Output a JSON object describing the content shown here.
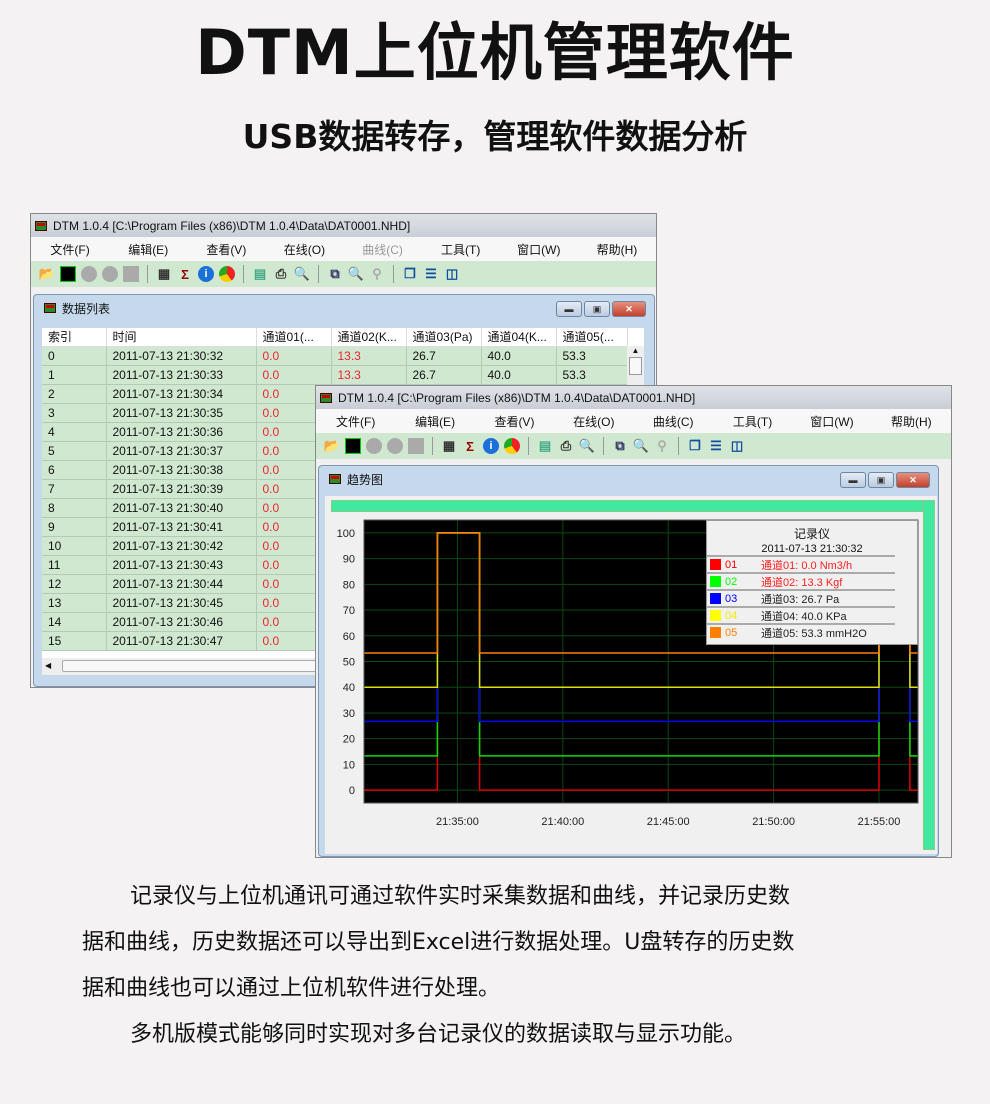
{
  "heading": {
    "title": "DTM上位机管理软件",
    "subtitle": "USB数据转存，管理软件数据分析"
  },
  "app": {
    "window_title": "DTM 1.0.4 [C:\\Program Files (x86)\\DTM 1.0.4\\Data\\DAT0001.NHD]",
    "menu": [
      "文件(F)",
      "编辑(E)",
      "查看(V)",
      "在线(O)",
      "曲线(C)",
      "工具(T)",
      "窗口(W)",
      "帮助(H)"
    ],
    "toolbar_icons": [
      "open-folder-icon",
      "trend-icon",
      "record-icon",
      "pause-icon",
      "stop-icon",
      "table-icon",
      "sigma-icon",
      "info-icon",
      "pie-icon",
      "export-icon",
      "print-icon",
      "print-preview-icon",
      "copy-icon",
      "zoom-in-icon",
      "zoom-out-icon",
      "cascade-icon",
      "tile-horizontal-icon",
      "tile-vertical-icon"
    ]
  },
  "data_list": {
    "title": "数据列表",
    "columns": [
      "索引",
      "时间",
      "通道01(...",
      "通道02(K...",
      "通道03(Pa)",
      "通道04(K...",
      "通道05(..."
    ],
    "rows": [
      [
        "0",
        "2011-07-13 21:30:32",
        "0.0",
        "13.3",
        "26.7",
        "40.0",
        "53.3"
      ],
      [
        "1",
        "2011-07-13 21:30:33",
        "0.0",
        "13.3",
        "26.7",
        "40.0",
        "53.3"
      ],
      [
        "2",
        "2011-07-13 21:30:34",
        "0.0"
      ],
      [
        "3",
        "2011-07-13 21:30:35",
        "0.0"
      ],
      [
        "4",
        "2011-07-13 21:30:36",
        "0.0"
      ],
      [
        "5",
        "2011-07-13 21:30:37",
        "0.0"
      ],
      [
        "6",
        "2011-07-13 21:30:38",
        "0.0"
      ],
      [
        "7",
        "2011-07-13 21:30:39",
        "0.0"
      ],
      [
        "8",
        "2011-07-13 21:30:40",
        "0.0"
      ],
      [
        "9",
        "2011-07-13 21:30:41",
        "0.0"
      ],
      [
        "10",
        "2011-07-13 21:30:42",
        "0.0"
      ],
      [
        "11",
        "2011-07-13 21:30:43",
        "0.0"
      ],
      [
        "12",
        "2011-07-13 21:30:44",
        "0.0"
      ],
      [
        "13",
        "2011-07-13 21:30:45",
        "0.0"
      ],
      [
        "14",
        "2011-07-13 21:30:46",
        "0.0"
      ],
      [
        "15",
        "2011-07-13 21:30:47",
        "0.0"
      ]
    ]
  },
  "trend": {
    "title": "趋势图",
    "legend": {
      "title": "记录仪",
      "timestamp": "2011-07-13 21:30:32",
      "items": [
        {
          "id": "01",
          "text": "通道01: 0.0 Nm3/h",
          "color": "#ff0000",
          "text_color": "#ff2020"
        },
        {
          "id": "02",
          "text": "通道02: 13.3 Kgf",
          "color": "#00ff00",
          "text_color": "#ff2020"
        },
        {
          "id": "03",
          "text": "通道03: 26.7 Pa",
          "color": "#0000ff",
          "text_color": "#222222"
        },
        {
          "id": "04",
          "text": "通道04: 40.0 KPa",
          "color": "#ffff00",
          "text_color": "#222222"
        },
        {
          "id": "05",
          "text": "通道05: 53.3 mmH2O",
          "color": "#ff8000",
          "text_color": "#222222"
        }
      ]
    }
  },
  "chart_data": {
    "type": "line",
    "x_range": [
      "21:30:34",
      "21:56:51"
    ],
    "ylim": [
      -5,
      105
    ],
    "y_ticks": [
      0,
      10,
      20,
      30,
      40,
      50,
      60,
      70,
      80,
      90,
      100
    ],
    "x_ticks": [
      "21:35:00",
      "21:40:00",
      "21:45:00",
      "21:50:00",
      "21:55:00"
    ],
    "grid": true,
    "legend_placement": "top-right",
    "pulses": [
      {
        "start": "21:34:03",
        "end": "21:36:03",
        "value": 100
      },
      {
        "start": "21:55:00",
        "end": "21:56:28",
        "value": 100
      }
    ],
    "series": [
      {
        "name": "01",
        "color": "#e00000",
        "baseline": 0.0
      },
      {
        "name": "02",
        "color": "#00e000",
        "baseline": 13.3
      },
      {
        "name": "03",
        "color": "#0000ee",
        "baseline": 26.7
      },
      {
        "name": "04",
        "color": "#e0e000",
        "baseline": 40.0
      },
      {
        "name": "05",
        "color": "#ff8000",
        "baseline": 53.3
      }
    ]
  },
  "description": {
    "p1": "记录仪与上位机通讯可通过软件实时采集数据和曲线，并记录历史数",
    "p1b": "据和曲线，历史数据还可以导出到Excel进行数据处理。U盘转存的历史数",
    "p1c": "据和曲线也可以通过上位机软件进行处理。",
    "p2": "多机版模式能够同时实现对多台记录仪的数据读取与显示功能。"
  }
}
